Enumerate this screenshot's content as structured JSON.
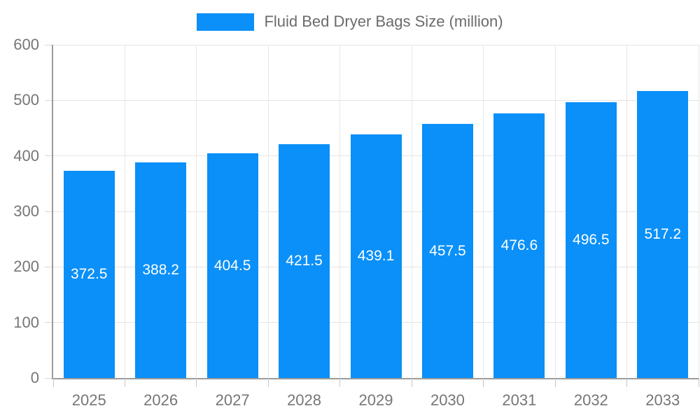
{
  "legend": {
    "label": "Fluid Bed Dryer Bags Size (million)"
  },
  "colors": {
    "bar": "#0a90f8",
    "value_label": "#ffffff",
    "axis_label": "#767676",
    "legend_label": "#6b6b6b",
    "axis_line": "#9b9b9b",
    "gridline": "#e4e4e4"
  },
  "chart_data": {
    "type": "bar",
    "title": "Fluid Bed Dryer Bags Size (million)",
    "series_name": "Fluid Bed Dryer Bags Size (million)",
    "categories": [
      "2025",
      "2026",
      "2027",
      "2028",
      "2029",
      "2030",
      "2031",
      "2032",
      "2033"
    ],
    "values": [
      372.5,
      388.2,
      404.5,
      421.5,
      439.1,
      457.5,
      476.6,
      496.5,
      517.2
    ],
    "value_labels": [
      "372.5",
      "388.2",
      "404.5",
      "421.5",
      "439.1",
      "457.5",
      "476.6",
      "496.5",
      "517.2"
    ],
    "xlabel": "",
    "ylabel": "",
    "ylim": [
      0,
      600
    ],
    "yticks": [
      0,
      100,
      200,
      300,
      400,
      500,
      600
    ],
    "grid": true,
    "legend_position": "top",
    "bar_color": "#0a90f8",
    "value_labels_inside_bars": true
  }
}
